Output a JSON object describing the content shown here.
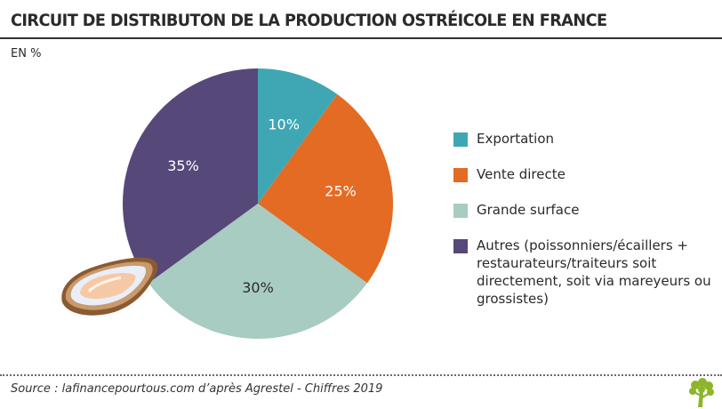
{
  "header": {
    "title": "CIRCUIT DE DISTRIBUTON DE LA PRODUCTION OSTRÉICOLE EN FRANCE",
    "unit": "EN %"
  },
  "chart_data": {
    "type": "pie",
    "title": "CIRCUIT DE DISTRIBUTON DE LA PRODUCTION OSTRÉICOLE EN FRANCE",
    "subtitle": "EN %",
    "start": "12 o'clock, clockwise",
    "legend_position": "right",
    "slices": [
      {
        "label": "Exportation",
        "value": 10,
        "display": "10%",
        "color": "#3fa7b3",
        "text_color": "#ffffff"
      },
      {
        "label": "Vente directe",
        "value": 25,
        "display": "25%",
        "color": "#e36b23",
        "text_color": "#ffffff"
      },
      {
        "label": "Grande surface",
        "value": 30,
        "display": "30%",
        "color": "#a8cbc2",
        "text_color": "#2b2b2b"
      },
      {
        "label": "Autres (poissonniers/écaillers + restaurateurs/traiteurs soit directement, soit via mareyeurs ou grossistes)",
        "value": 35,
        "display": "35%",
        "color": "#564879",
        "text_color": "#ffffff"
      }
    ]
  },
  "footer": {
    "source": "Source : lafinancepourtous.com d’après Agrestel - Chiffres 2019",
    "logo_icon": "tree-logo-icon",
    "illustration_icon": "oyster-icon",
    "logo_color": "#8db52a"
  }
}
